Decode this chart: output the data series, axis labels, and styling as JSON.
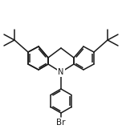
{
  "bg_color": "#ffffff",
  "line_color": "#1a1a1a",
  "line_width": 1.1,
  "fig_width": 1.52,
  "fig_height": 1.61,
  "dpi": 100,
  "N_label": "N",
  "Br_label": "Br",
  "label_fontsize": 7.0
}
